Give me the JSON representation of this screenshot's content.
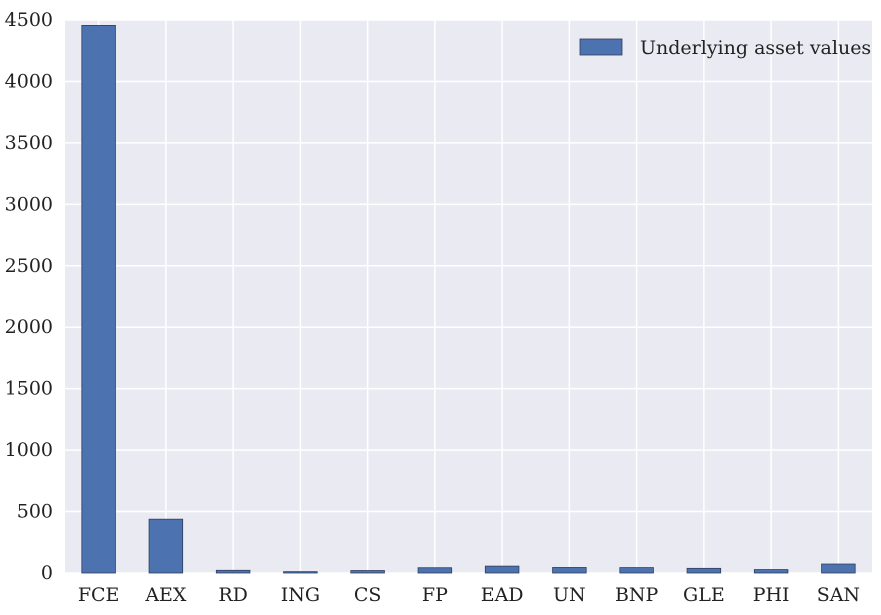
{
  "chart_data": {
    "type": "bar",
    "categories": [
      "FCE",
      "AEX",
      "RD",
      "ING",
      "CS",
      "FP",
      "EAD",
      "UN",
      "BNP",
      "GLE",
      "PHI",
      "SAN"
    ],
    "series": [
      {
        "name": "Underlying asset values",
        "values": [
          4456,
          438,
          22,
          11,
          20,
          43,
          56,
          45,
          44,
          38,
          28,
          73
        ]
      }
    ],
    "title": "",
    "xlabel": "",
    "ylabel": "",
    "ylim": [
      0,
      4500
    ],
    "yticks": [
      0,
      500,
      1000,
      1500,
      2000,
      2500,
      3000,
      3500,
      4000,
      4500
    ],
    "grid": true,
    "legend_position": "top-right",
    "colors": {
      "bar_fill": "#4c72b0",
      "bar_edge": "#2f3e5c",
      "plot_background": "#eaeaf2",
      "grid": "#ffffff"
    }
  }
}
